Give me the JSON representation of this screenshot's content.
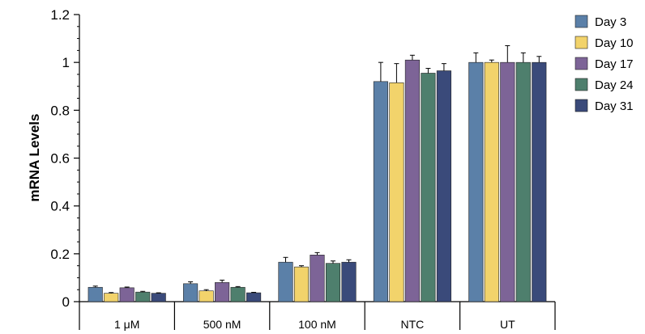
{
  "chart_data": {
    "type": "bar",
    "ylabel": "mRNA Levels",
    "xlabel": "",
    "ylim": [
      0,
      1.2
    ],
    "yticks": [
      "0",
      "0.2",
      "0.4",
      "0.6",
      "0.8",
      "1",
      "1.2"
    ],
    "categories": [
      "1 μM",
      "500 nM",
      "100 nM",
      "NTC",
      "UT"
    ],
    "legend_position": "right",
    "series": [
      {
        "name": "Day 3",
        "color": "#5b80a8",
        "values": [
          0.06,
          0.075,
          0.165,
          0.92,
          1.0
        ],
        "errors": [
          0.005,
          0.008,
          0.02,
          0.08,
          0.04
        ]
      },
      {
        "name": "Day 10",
        "color": "#f2d36b",
        "values": [
          0.035,
          0.045,
          0.145,
          0.915,
          1.0
        ],
        "errors": [
          0.003,
          0.005,
          0.005,
          0.08,
          0.01
        ]
      },
      {
        "name": "Day 17",
        "color": "#7d6497",
        "values": [
          0.058,
          0.08,
          0.195,
          1.01,
          1.0
        ],
        "errors": [
          0.003,
          0.01,
          0.01,
          0.02,
          0.07
        ]
      },
      {
        "name": "Day 24",
        "color": "#4e7f6d",
        "values": [
          0.04,
          0.06,
          0.16,
          0.955,
          1.0
        ],
        "errors": [
          0.003,
          0.003,
          0.01,
          0.02,
          0.04
        ]
      },
      {
        "name": "Day 31",
        "color": "#3a4a7a",
        "values": [
          0.035,
          0.037,
          0.165,
          0.965,
          1.0
        ],
        "errors": [
          0.002,
          0.002,
          0.01,
          0.03,
          0.025
        ]
      }
    ]
  }
}
